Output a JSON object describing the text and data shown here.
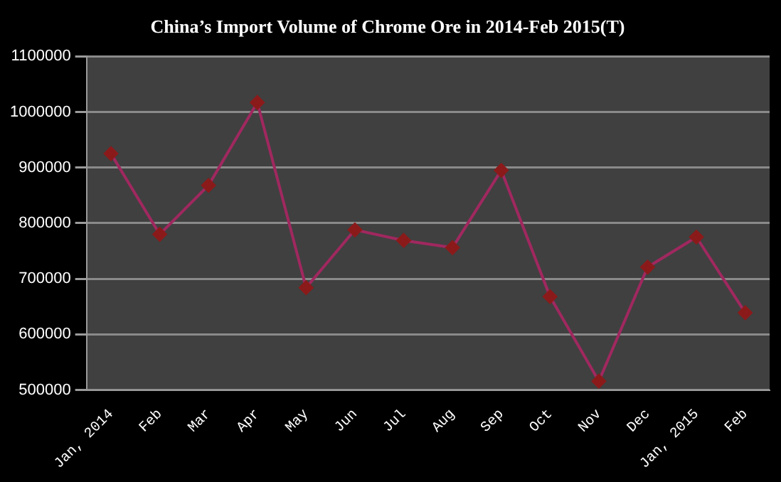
{
  "chart_data": {
    "type": "line",
    "title": "China’s Import Volume of Chrome Ore in 2014-Feb 2015(T)",
    "categories": [
      "Jan, 2014",
      "Feb",
      "Mar",
      "Apr",
      "May",
      "Jun",
      "Jul",
      "Aug",
      "Sep",
      "Oct",
      "Nov",
      "Dec",
      "Jan, 2015",
      "Feb"
    ],
    "series": [
      {
        "color": "#a0285f",
        "values": [
          925000,
          780000,
          868000,
          1017000,
          684000,
          788000,
          769000,
          756000,
          895000,
          668000,
          516000,
          721000,
          775000,
          639000
        ]
      }
    ],
    "ylim": [
      500000,
      1100000
    ],
    "yticks": [
      500000,
      600000,
      700000,
      800000,
      900000,
      1000000,
      1100000
    ],
    "grid": "y",
    "legend": false,
    "marker": "diamond",
    "line_style": "solid"
  }
}
